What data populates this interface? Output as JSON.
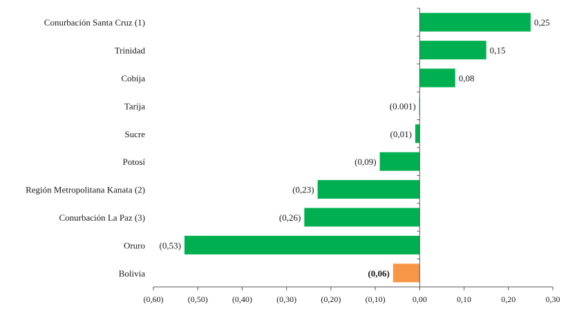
{
  "chart_data": {
    "type": "bar",
    "orientation": "horizontal",
    "categories": [
      "Conurbación Santa Cruz (1)",
      "Trinidad",
      "Cobija",
      "Tarija",
      "Sucre",
      "Potosí",
      "Región Metropolitana Kanata (2)",
      "Conurbación La Paz (3)",
      "Oruro",
      "Bolivia"
    ],
    "values": [
      0.25,
      0.15,
      0.08,
      -0.001,
      -0.01,
      -0.09,
      -0.23,
      -0.26,
      -0.53,
      -0.06
    ],
    "data_labels": [
      "0,25",
      "0,15",
      "0,08",
      "(0.001)",
      "(0,01)",
      "(0,09)",
      "(0,23)",
      "(0,26)",
      "(0,53)",
      "(0,06)"
    ],
    "bar_colors": [
      "#00b050",
      "#00b050",
      "#00b050",
      "#00b050",
      "#00b050",
      "#00b050",
      "#00b050",
      "#00b050",
      "#00b050",
      "#f79646"
    ],
    "highlight_category": "Bolivia",
    "xlim": [
      -0.6,
      0.3
    ],
    "x_ticks": [
      -0.6,
      -0.5,
      -0.4,
      -0.3,
      -0.2,
      -0.1,
      0.0,
      0.1,
      0.2,
      0.3
    ],
    "x_tick_labels": [
      "(0,60)",
      "(0,50)",
      "(0,40)",
      "(0,30)",
      "(0,20)",
      "(0,10)",
      "0,00",
      "0,10",
      "0,20",
      "0,30"
    ],
    "title": "",
    "xlabel": "",
    "ylabel": "",
    "grid": false,
    "legend": "none"
  }
}
